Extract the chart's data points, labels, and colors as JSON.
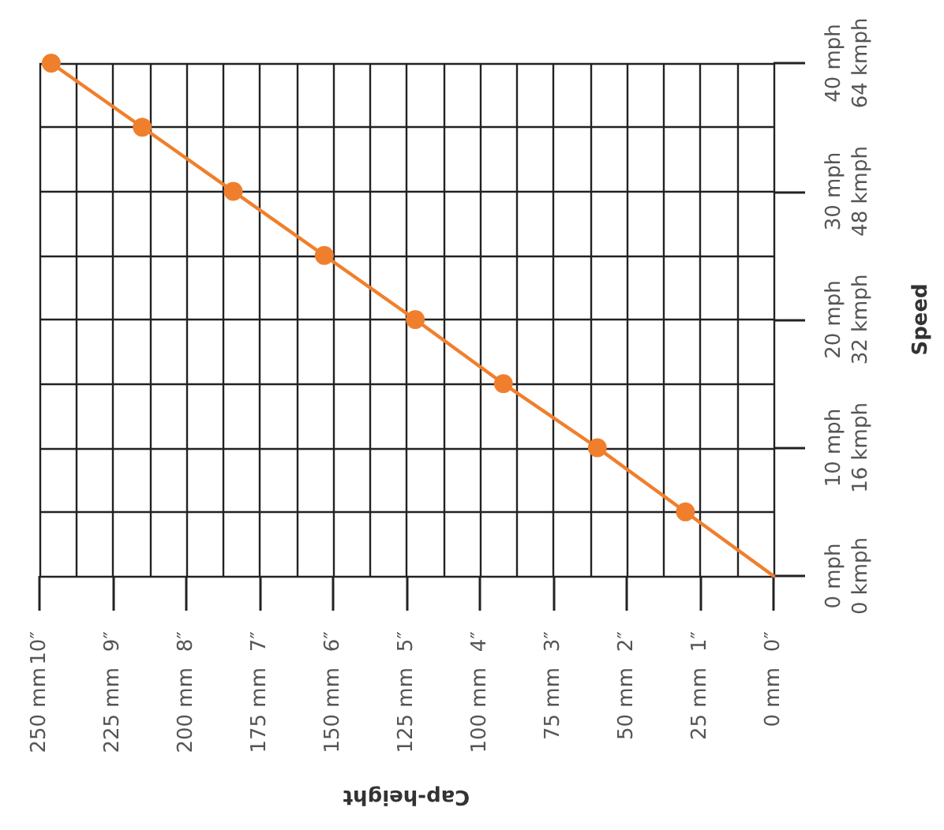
{
  "chart_data": {
    "type": "line",
    "xlabel": "Cap-height",
    "y2label": "Speed",
    "x": [
      0,
      30,
      60,
      92,
      122,
      153,
      184,
      215,
      246
    ],
    "series": [
      {
        "color": "#f07f2d",
        "values": [
          0,
          5,
          10,
          15,
          20,
          25,
          30,
          35,
          40
        ]
      }
    ],
    "xlim": [
      250,
      0
    ],
    "xticks": [
      {
        "value": 250,
        "label": "250 mm"
      },
      {
        "value": 237.5,
        "label": null
      },
      {
        "value": 225,
        "label": "225 mm"
      },
      {
        "value": 212.5,
        "label": null
      },
      {
        "value": 200,
        "label": "200 mm"
      },
      {
        "value": 187.5,
        "label": null
      },
      {
        "value": 175,
        "label": "175 mm"
      },
      {
        "value": 162.5,
        "label": null
      },
      {
        "value": 150,
        "label": "150 mm"
      },
      {
        "value": 137.5,
        "label": null
      },
      {
        "value": 125,
        "label": "125 mm"
      },
      {
        "value": 112.5,
        "label": null
      },
      {
        "value": 100,
        "label": "100 mm"
      },
      {
        "value": 87.5,
        "label": null
      },
      {
        "value": 75,
        "label": "75 mm"
      },
      {
        "value": 62.5,
        "label": null
      },
      {
        "value": 50,
        "label": "50 mm"
      },
      {
        "value": 37.5,
        "label": null
      },
      {
        "value": 25,
        "label": "25 mm"
      },
      {
        "value": 12.5,
        "label": null
      },
      {
        "value": 0,
        "label": "0 mm"
      }
    ],
    "x2lim": [
      10,
      0
    ],
    "x2ticks": [
      {
        "value": 10,
        "label": "10″"
      },
      {
        "value": 9,
        "label": "9″"
      },
      {
        "value": 8,
        "label": "8″"
      },
      {
        "value": 7,
        "label": "7″"
      },
      {
        "value": 6,
        "label": "6″"
      },
      {
        "value": 5,
        "label": "5″"
      },
      {
        "value": 4,
        "label": "4″"
      },
      {
        "value": 3,
        "label": "3″"
      },
      {
        "value": 2,
        "label": "2″"
      },
      {
        "value": 1,
        "label": "1″"
      },
      {
        "value": 0,
        "label": "0″"
      }
    ],
    "ylim": [
      0,
      40
    ],
    "yticks": [
      {
        "value": 0,
        "label": "0 mph"
      },
      {
        "value": 5,
        "label": null
      },
      {
        "value": 10,
        "label": "10 mph"
      },
      {
        "value": 15,
        "label": null
      },
      {
        "value": 20,
        "label": "20 mph"
      },
      {
        "value": 25,
        "label": null
      },
      {
        "value": 30,
        "label": "30 mph"
      },
      {
        "value": 35,
        "label": null
      },
      {
        "value": 40,
        "label": "40 mph"
      }
    ],
    "y2lim": [
      0,
      64
    ],
    "y2ticks": [
      {
        "value": 0,
        "label": "0 kmph"
      },
      {
        "value": 16,
        "label": "16 kmph"
      },
      {
        "value": 32,
        "label": "32 kmph"
      },
      {
        "value": 48,
        "label": "48 kmph"
      },
      {
        "value": 64,
        "label": "64 kmph"
      }
    ],
    "grid": true,
    "marker": "circle",
    "line_style": "solid"
  }
}
